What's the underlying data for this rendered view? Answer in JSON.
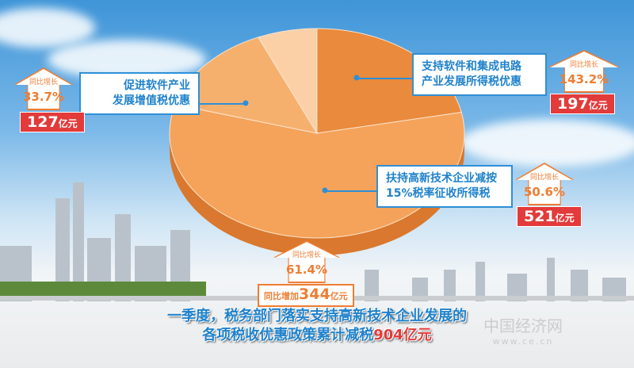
{
  "chart_data": {
    "type": "pie",
    "total": 904,
    "unit": "亿元",
    "slices": [
      {
        "name": "支持软件和集成电路产业发展所得税优惠",
        "value": 197,
        "growth": "143.2%",
        "color": "#e98a3c"
      },
      {
        "name": "扶持高新技术企业减按15%税率征收所得税",
        "value": 521,
        "growth": "50.6%",
        "color": "#f5a35a"
      },
      {
        "name": "促进软件产业发展增值税优惠",
        "value": 127,
        "growth": "33.7%",
        "color": "#f6b06e"
      },
      {
        "name": "",
        "value": 59,
        "color": "#fbd0a6"
      }
    ]
  },
  "labels": {
    "yoy": "同比增长",
    "unit": "亿元",
    "left": {
      "line1": "促进软件产业",
      "line2": "发展增值税优惠",
      "pct": "33.7%",
      "value": "127"
    },
    "top_right": {
      "line1": "支持软件和集成电路",
      "line2": "产业发展所得税优惠",
      "pct": "143.2%",
      "value": "197"
    },
    "mid_right": {
      "line1": "扶持高新技术企业减按",
      "line2": "15%税率征收所得税",
      "pct": "50.6%",
      "value": "521"
    },
    "bottom": {
      "pct": "61.4%",
      "prefix": "同比增加",
      "value": "344"
    }
  },
  "title": {
    "line1": "一季度，税务部门落实支持高新技术企业发展的",
    "line2": "各项税收优惠政策累计减税",
    "highlight": "904亿元"
  },
  "watermark": {
    "cn": "中国经济网",
    "url": "www.ce.cn"
  }
}
